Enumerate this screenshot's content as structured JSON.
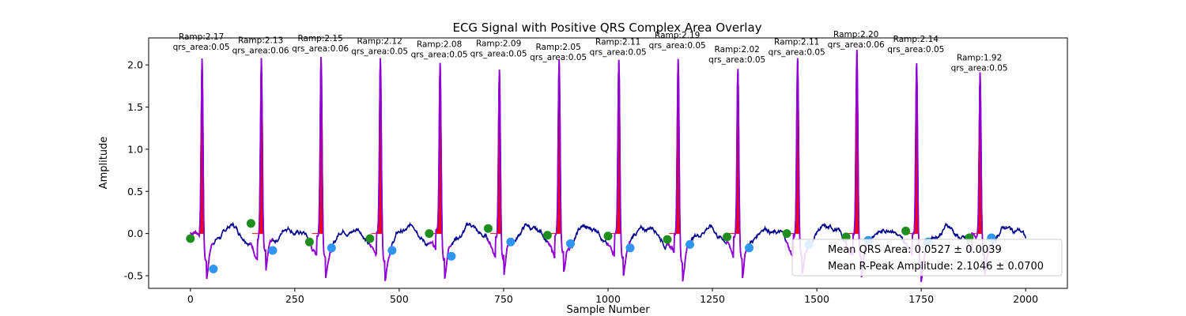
{
  "chart_data": {
    "type": "line",
    "title": "ECG Signal with Positive QRS Complex Area Overlay",
    "xlabel": "Sample Number",
    "ylabel": "Amplitude",
    "xlim": [
      -100,
      2100
    ],
    "ylim": [
      -0.65,
      2.32
    ],
    "xticks": [
      0,
      250,
      500,
      750,
      1000,
      1250,
      1500,
      1750,
      2000
    ],
    "yticks": [
      -0.5,
      0.0,
      0.5,
      1.0,
      1.5,
      2.0
    ],
    "grid": false,
    "colors": {
      "signal": "#00008b",
      "qrs_segment": "#9400d3",
      "area_fill": "#ff0000",
      "q_points": "#1e8f1e",
      "s_points": "#2f95f0"
    },
    "beats": [
      {
        "r_x": 28,
        "r_amp": 2.17,
        "q": [
          0,
          -0.06
        ],
        "s": [
          55,
          -0.42
        ],
        "label_r": "Ramp:2.17",
        "label_area": "qrs_area:0.05"
      },
      {
        "r_x": 170,
        "r_amp": 2.13,
        "q": [
          145,
          0.12
        ],
        "s": [
          197,
          -0.2
        ],
        "label_r": "Ramp:2.13",
        "label_area": "qrs_area:0.06"
      },
      {
        "r_x": 313,
        "r_amp": 2.15,
        "q": [
          285,
          -0.1
        ],
        "s": [
          338,
          -0.17
        ],
        "label_r": "Ramp:2.15",
        "label_area": "qrs_area:0.06"
      },
      {
        "r_x": 455,
        "r_amp": 2.12,
        "q": [
          430,
          -0.06
        ],
        "s": [
          483,
          -0.2
        ],
        "label_r": "Ramp:2.12",
        "label_area": "qrs_area:0.05"
      },
      {
        "r_x": 598,
        "r_amp": 2.08,
        "q": [
          572,
          0.0
        ],
        "s": [
          625,
          -0.27
        ],
        "label_r": "Ramp:2.08",
        "label_area": "qrs_area:0.05"
      },
      {
        "r_x": 740,
        "r_amp": 2.09,
        "q": [
          713,
          0.06
        ],
        "s": [
          767,
          -0.1
        ],
        "label_r": "Ramp:2.09",
        "label_area": "qrs_area:0.05"
      },
      {
        "r_x": 883,
        "r_amp": 2.05,
        "q": [
          855,
          -0.02
        ],
        "s": [
          910,
          -0.12
        ],
        "label_r": "Ramp:2.05",
        "label_area": "qrs_area:0.05"
      },
      {
        "r_x": 1026,
        "r_amp": 2.11,
        "q": [
          1000,
          -0.03
        ],
        "s": [
          1053,
          -0.17
        ],
        "label_r": "Ramp:2.11",
        "label_area": "qrs_area:0.05"
      },
      {
        "r_x": 1168,
        "r_amp": 2.19,
        "q": [
          1142,
          -0.07
        ],
        "s": [
          1196,
          -0.13
        ],
        "label_r": "Ramp:2.19",
        "label_area": "qrs_area:0.05"
      },
      {
        "r_x": 1311,
        "r_amp": 2.02,
        "q": [
          1285,
          -0.04
        ],
        "s": [
          1338,
          -0.17
        ],
        "label_r": "Ramp:2.02",
        "label_area": "qrs_area:0.05"
      },
      {
        "r_x": 1454,
        "r_amp": 2.11,
        "q": [
          1428,
          0.0
        ],
        "s": [
          1481,
          -0.13
        ],
        "label_r": "Ramp:2.11",
        "label_area": "qrs_area:0.05"
      },
      {
        "r_x": 1596,
        "r_amp": 2.2,
        "q": [
          1570,
          -0.04
        ],
        "s": [
          1623,
          -0.08
        ],
        "label_r": "Ramp:2.20",
        "label_area": "qrs_area:0.06"
      },
      {
        "r_x": 1739,
        "r_amp": 2.14,
        "q": [
          1713,
          0.03
        ],
        "s": [
          1766,
          -0.1
        ],
        "label_r": "Ramp:2.14",
        "label_area": "qrs_area:0.05"
      },
      {
        "r_x": 1891,
        "r_amp": 1.92,
        "q": [
          1865,
          -0.05
        ],
        "s": [
          1918,
          -0.05
        ],
        "label_r": "Ramp:1.92",
        "label_area": "qrs_area:0.05"
      }
    ],
    "legend": {
      "placement": "lower-right",
      "entries": [
        "Mean QRS Area: 0.0527 ± 0.0039",
        "Mean R-Peak Amplitude: 2.1046 ± 0.0700"
      ]
    }
  }
}
